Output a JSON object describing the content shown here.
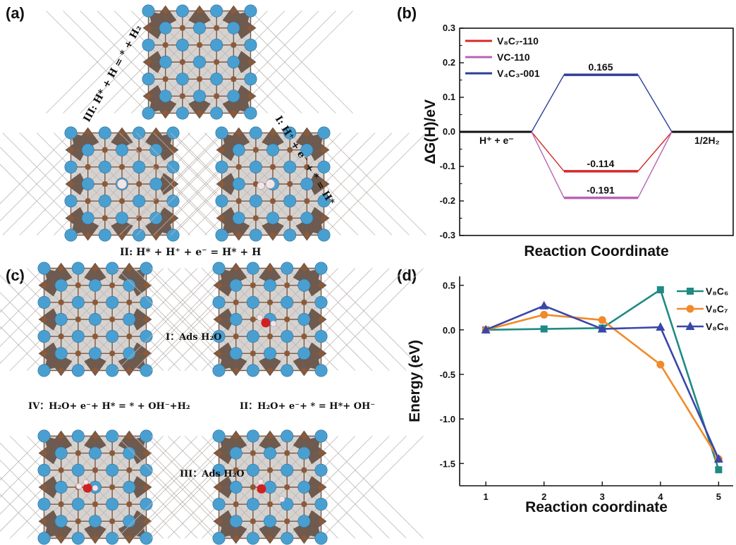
{
  "panel_labels": {
    "a": "(a)",
    "b": "(b)",
    "c": "(c)",
    "d": "(d)"
  },
  "panel_a": {
    "step_I": "I: H⁺ + e⁻ + * = H*",
    "step_II": "II: H* + H⁺ + e⁻ = H* + H",
    "step_III": "III: H* + H = * + H₂"
  },
  "panel_c": {
    "step_I": "I：Ads H₂O",
    "step_II": "II：H₂O+ e⁻+ * = H*+ OH⁻",
    "step_III": "III：Ads H₂O",
    "step_IV": "IV：H₂O+ e⁻+ H* = * + OH⁻+H₂"
  },
  "colors": {
    "atom_v": "#4a9fd1",
    "atom_c": "#8a5a3a",
    "octahedron": "#6e5a4e",
    "cell": "#d6d2cf",
    "oxygen": "#d12020",
    "hydrogen": "#f0e6ea"
  },
  "chart_data": [
    {
      "type": "line",
      "panel": "b",
      "xlabel": "Reaction Coordinate",
      "ylabel": "ΔG(H)/eV",
      "ylim": [
        -0.3,
        0.3
      ],
      "yticks": [
        "0.3",
        "0.2",
        "0.1",
        "0.0",
        "-0.1",
        "-0.2",
        "-0.3"
      ],
      "x_labels": {
        "start": "H⁺ + e⁻",
        "end": "1/2H₂"
      },
      "series": [
        {
          "name": "V₈C₇-110",
          "color": "#d42a2a",
          "value": -0.114,
          "label": "-0.114"
        },
        {
          "name": "VC-110",
          "color": "#b565b5",
          "value": -0.191,
          "label": "-0.191"
        },
        {
          "name": "V₄C₃-001",
          "color": "#2e3e9a",
          "value": 0.165,
          "label": "0.165"
        }
      ],
      "legend_position": "top-left",
      "grid": false
    },
    {
      "type": "line",
      "panel": "d",
      "xlabel": "Reaction coordinate",
      "ylabel": "Energy (eV)",
      "x": [
        1,
        2,
        3,
        4,
        5
      ],
      "xticks": [
        "1",
        "2",
        "3",
        "4",
        "5"
      ],
      "ylim": [
        -1.75,
        0.6
      ],
      "yticks": [
        "0.5",
        "0.0",
        "-0.5",
        "-1.0",
        "-1.5"
      ],
      "series": [
        {
          "name": "V₈C₆",
          "color": "#1f8a84",
          "marker": "square",
          "values": [
            0.0,
            0.01,
            0.02,
            0.45,
            -1.57
          ]
        },
        {
          "name": "V₈C₇",
          "color": "#f08a2a",
          "marker": "circle",
          "values": [
            0.0,
            0.17,
            0.11,
            -0.39,
            -1.45
          ]
        },
        {
          "name": "V₈C₈",
          "color": "#3a47a8",
          "marker": "triangle",
          "values": [
            0.0,
            0.27,
            0.01,
            0.03,
            -1.45
          ]
        }
      ],
      "legend_position": "top-right",
      "grid": false
    }
  ]
}
